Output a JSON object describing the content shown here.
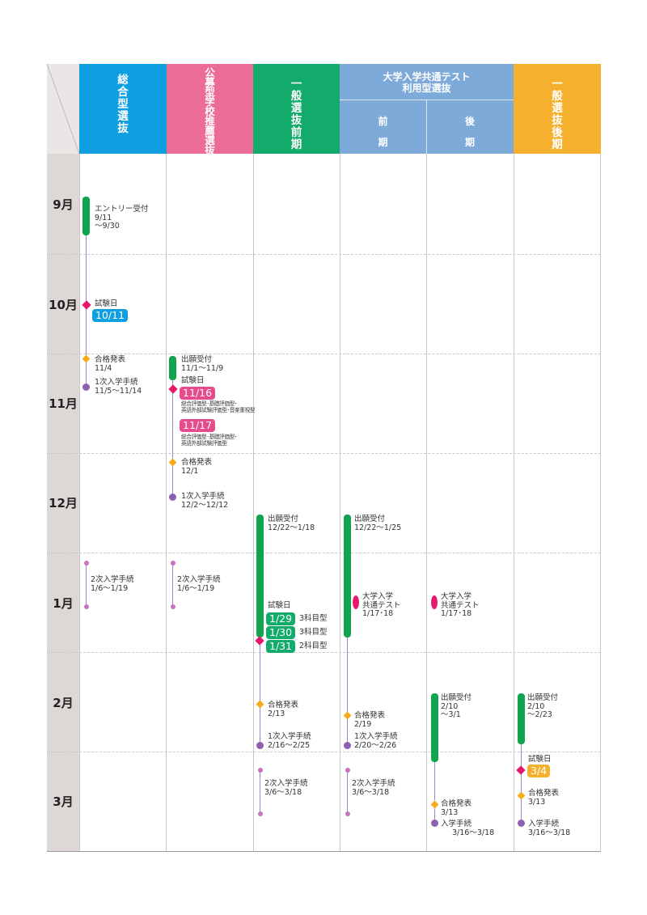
{
  "colors": {
    "col1": "#0f9fe0",
    "col2": "#eb6c97",
    "col3": "#12ab6c",
    "col4": "#7eaad9",
    "col5": "#f5b02e",
    "month_bg": "#ddd7d6",
    "bar": "#12a34d",
    "exam": "#e5186c",
    "result": "#f5ab1b",
    "procedure": "#8e5fae"
  },
  "header": {
    "col1": [
      "総",
      "合",
      "型",
      "選",
      "抜"
    ],
    "col2": [
      "公",
      "募",
      "型",
      "学",
      "校",
      "推",
      "薦",
      "選",
      "抜"
    ],
    "col3": [
      "一",
      "般",
      "選",
      "抜",
      "前",
      "期"
    ],
    "col4_line1": "大学入学共通テスト",
    "col4_line2": "利用型選抜",
    "col4_sub1": [
      "前",
      "期"
    ],
    "col4_sub2": [
      "後",
      "期"
    ],
    "col5": [
      "一",
      "般",
      "選",
      "抜",
      "後",
      "期"
    ]
  },
  "months": [
    "9月",
    "10月",
    "11月",
    "12月",
    "1月",
    "2月",
    "3月"
  ],
  "c1": {
    "entry_label": "エントリー受付",
    "entry_d1": "9/11",
    "entry_d2": "～9/30",
    "exam_label": "試験日",
    "exam_date": "10/11",
    "result_label": "合格発表",
    "result_date": "11/4",
    "proc1_label": "1次入学手続",
    "proc1_date": "11/5～11/14",
    "proc2_label": "2次入学手続",
    "proc2_date": "1/6～1/19"
  },
  "c2": {
    "app_label": "出願受付",
    "app_date": "11/1～11/9",
    "exam_label": "試験日",
    "exam1": "11/16",
    "note1a": "総合評価型･基礎評価型･",
    "note1b": "英語外部試験評価型･音楽重視型",
    "exam2": "11/17",
    "note2a": "総合評価型･基礎評価型･",
    "note2b": "英語外部試験評価型",
    "result_label": "合格発表",
    "result_date": "12/1",
    "proc1_label": "1次入学手続",
    "proc1_date": "12/2～12/12",
    "proc2_label": "2次入学手続",
    "proc2_date": "1/6～1/19"
  },
  "c3": {
    "app_label": "出願受付",
    "app_date": "12/22～1/18",
    "exam_label": "試験日",
    "exams": [
      {
        "date": "1/29",
        "type": "3科目型"
      },
      {
        "date": "1/30",
        "type": "3科目型"
      },
      {
        "date": "1/31",
        "type": "2科目型"
      }
    ],
    "result_label": "合格発表",
    "result_date": "2/13",
    "proc1_label": "1次入学手続",
    "proc1_date": "2/16～2/25",
    "proc2_label": "2次入学手続",
    "proc2_date": "3/6～3/18"
  },
  "c4": {
    "app_label": "出願受付",
    "app_date": "12/22～1/25",
    "test_l1": "大学入学",
    "test_l2": "共通テスト",
    "test_date": "1/17･18",
    "result_label": "合格発表",
    "result_date": "2/19",
    "proc1_label": "1次入学手続",
    "proc1_date": "2/20～2/26",
    "proc2_label": "2次入学手続",
    "proc2_date": "3/6～3/18"
  },
  "c5": {
    "test_l1": "大学入学",
    "test_l2": "共通テスト",
    "test_date": "1/17･18",
    "app_label": "出願受付",
    "app_d1": "2/10",
    "app_d2": "～3/1",
    "result_label": "合格発表",
    "result_date": "3/13",
    "proc_label": "入学手続",
    "proc_date": "3/16～3/18"
  },
  "c6": {
    "app_label": "出願受付",
    "app_d1": "2/10",
    "app_d2": "～2/23",
    "exam_label": "試験日",
    "exam_date": "3/4",
    "result_label": "合格発表",
    "result_date": "3/13",
    "proc_label": "入学手続",
    "proc_date": "3/16～3/18"
  }
}
